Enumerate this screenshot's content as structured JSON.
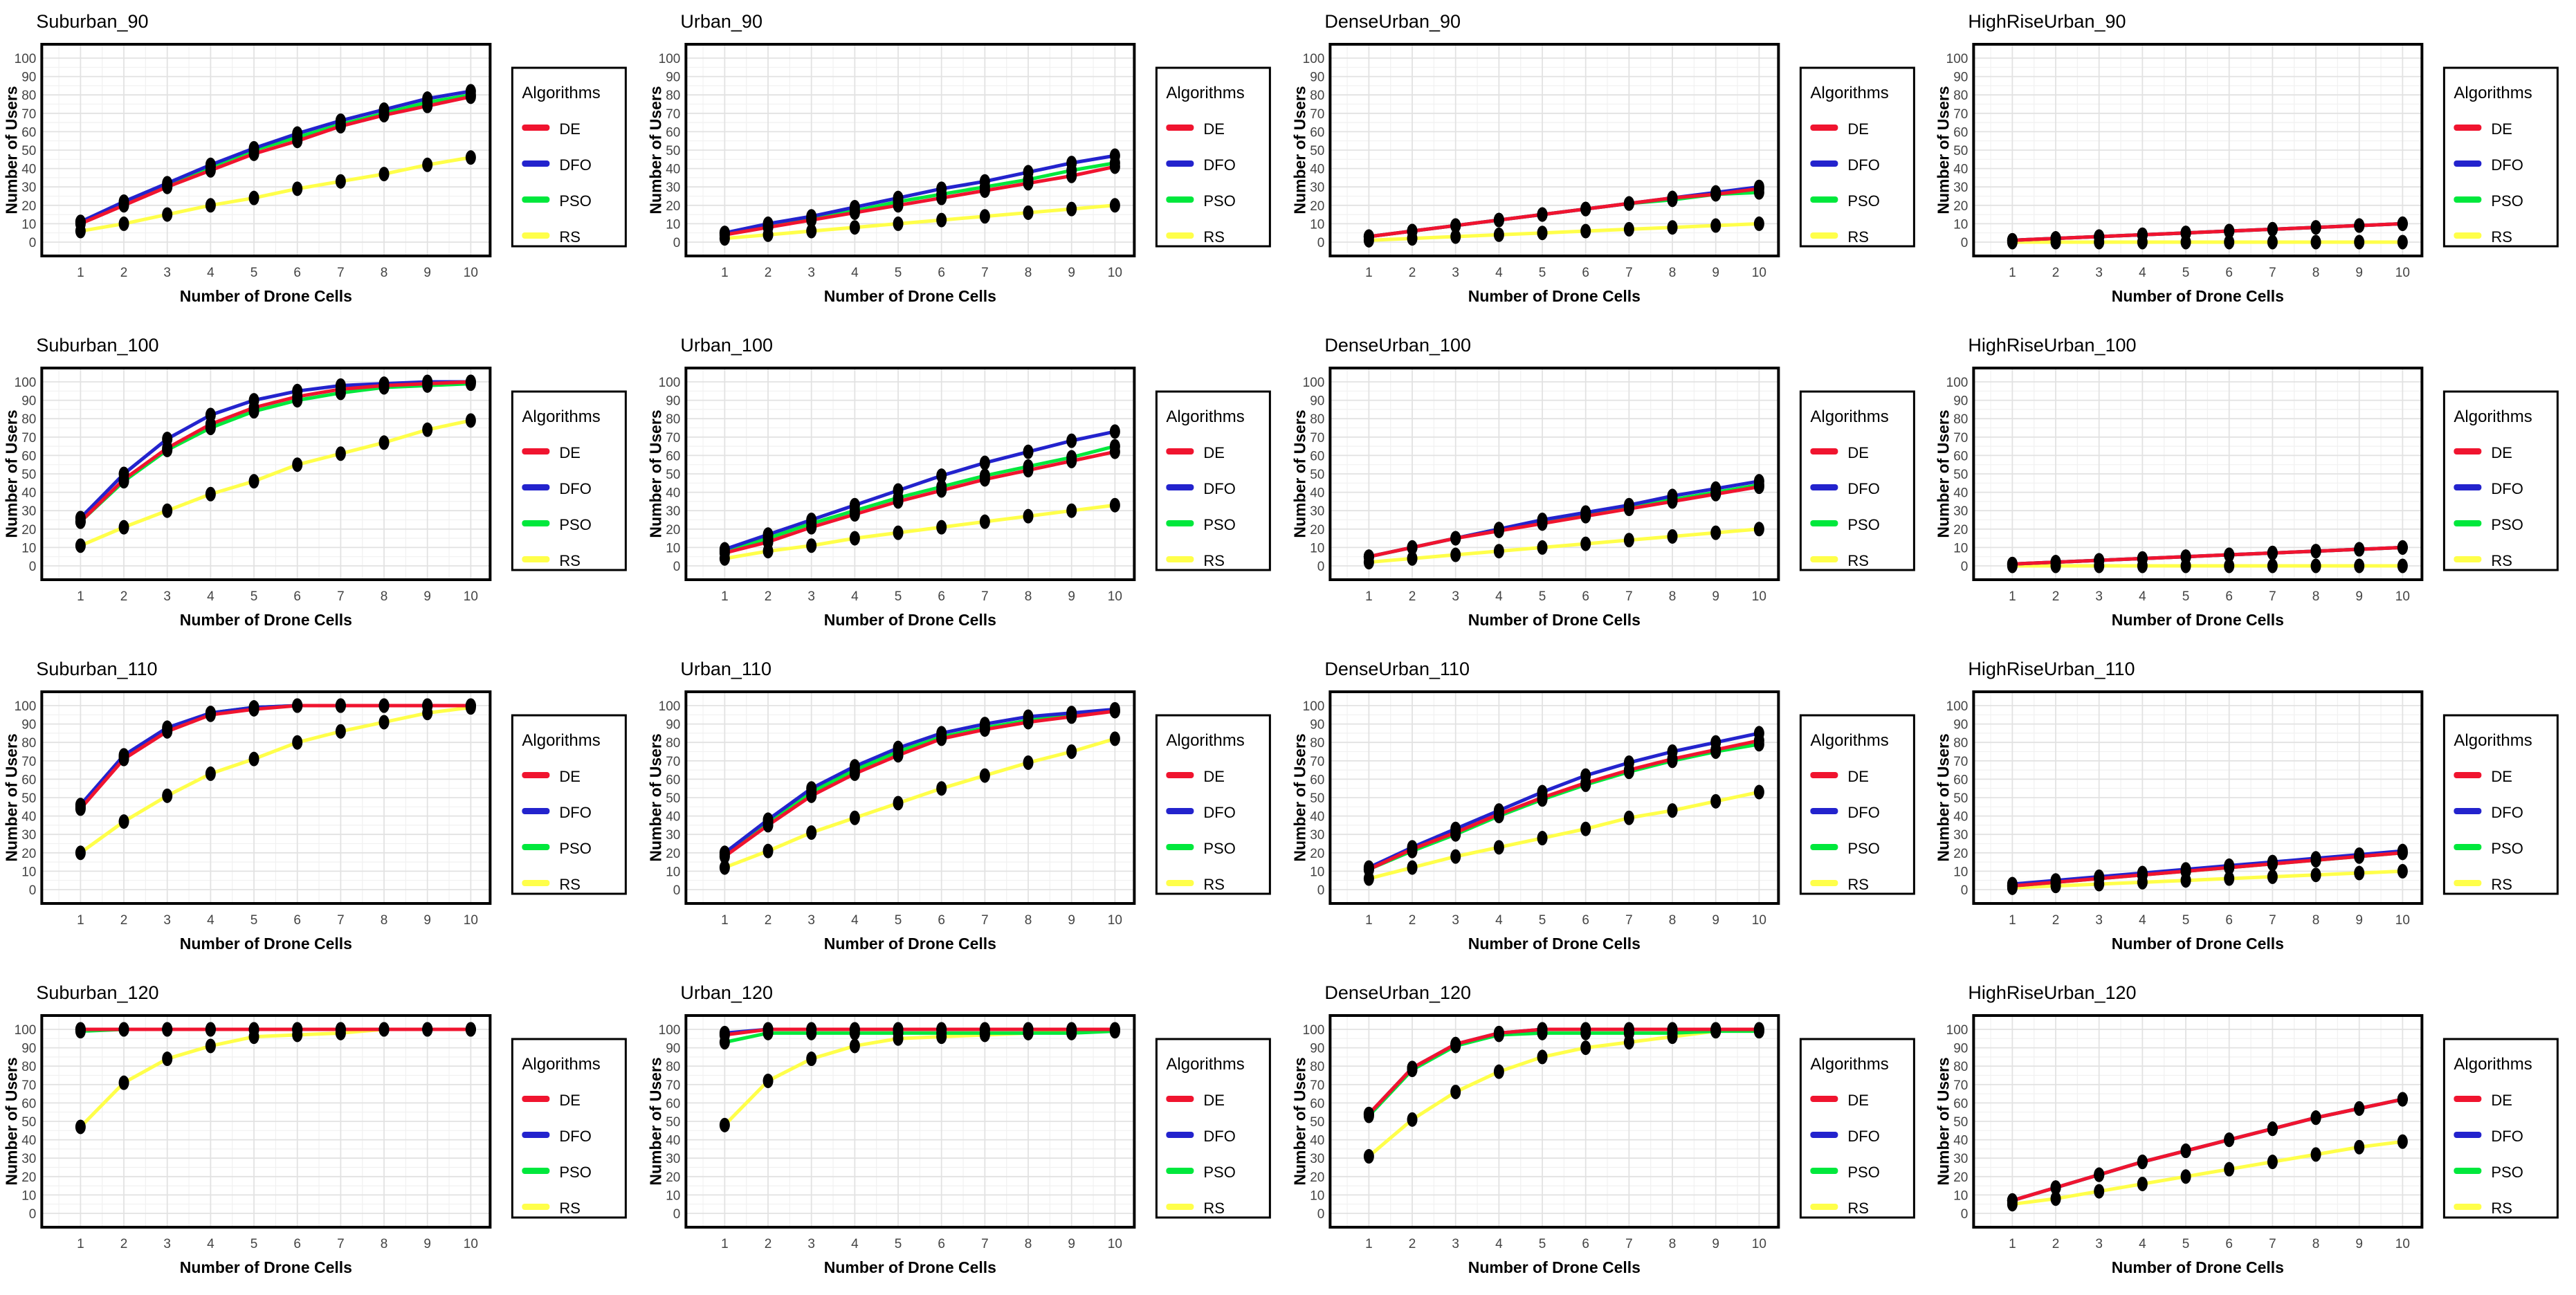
{
  "axes": {
    "xlabel": "Number of Drone Cells",
    "ylabel": "Number of Users",
    "x_ticks": [
      "1",
      "2",
      "3",
      "4",
      "5",
      "6",
      "7",
      "8",
      "9",
      "10"
    ],
    "y_ticks": [
      "0",
      "10",
      "20",
      "30",
      "40",
      "50",
      "60",
      "70",
      "80",
      "90",
      "100"
    ],
    "ylim": [
      0,
      100
    ],
    "grid": true
  },
  "legend": {
    "title": "Algorithms",
    "position": "right",
    "entries": [
      {
        "label": "DE",
        "color": "#f0142f"
      },
      {
        "label": "DFO",
        "color": "#2323cd"
      },
      {
        "label": "PSO",
        "color": "#00e83c"
      },
      {
        "label": "RS",
        "color": "#ffff4a"
      }
    ]
  },
  "style": {
    "marker_color": "#000000",
    "grid_major_color": "#e2e2e2",
    "grid_minor_color": "#f1f1f1",
    "panel_border_color": "#000000"
  },
  "chart_data": [
    {
      "type": "line",
      "title": "Suburban_90",
      "categories": [
        1,
        2,
        3,
        4,
        5,
        6,
        7,
        8,
        9,
        10
      ],
      "series": [
        {
          "name": "DE",
          "values": [
            10,
            20,
            30,
            39,
            48,
            55,
            63,
            69,
            74,
            79
          ]
        },
        {
          "name": "DFO",
          "values": [
            11,
            22,
            32,
            42,
            51,
            59,
            66,
            72,
            78,
            82
          ]
        },
        {
          "name": "PSO",
          "values": [
            11,
            21,
            31,
            41,
            50,
            57,
            64,
            70,
            76,
            80
          ]
        },
        {
          "name": "RS",
          "values": [
            6,
            10,
            15,
            20,
            24,
            29,
            33,
            37,
            42,
            46
          ]
        }
      ]
    },
    {
      "type": "line",
      "title": "Urban_90",
      "categories": [
        1,
        2,
        3,
        4,
        5,
        6,
        7,
        8,
        9,
        10
      ],
      "series": [
        {
          "name": "DE",
          "values": [
            4,
            8,
            12,
            16,
            20,
            24,
            28,
            32,
            36,
            41
          ]
        },
        {
          "name": "DFO",
          "values": [
            5,
            10,
            14,
            19,
            24,
            29,
            33,
            38,
            43,
            47
          ]
        },
        {
          "name": "PSO",
          "values": [
            5,
            9,
            13,
            17,
            22,
            26,
            30,
            34,
            39,
            43
          ]
        },
        {
          "name": "RS",
          "values": [
            2,
            4,
            6,
            8,
            10,
            12,
            14,
            16,
            18,
            20
          ]
        }
      ]
    },
    {
      "type": "line",
      "title": "DenseUrban_90",
      "categories": [
        1,
        2,
        3,
        4,
        5,
        6,
        7,
        8,
        9,
        10
      ],
      "series": [
        {
          "name": "DE",
          "values": [
            3,
            6,
            9,
            12,
            15,
            18,
            21,
            24,
            26,
            29
          ]
        },
        {
          "name": "DFO",
          "values": [
            3,
            6,
            9,
            12,
            15,
            18,
            21,
            24,
            27,
            30
          ]
        },
        {
          "name": "PSO",
          "values": [
            3,
            6,
            9,
            12,
            15,
            18,
            21,
            23,
            26,
            27
          ]
        },
        {
          "name": "RS",
          "values": [
            1,
            2,
            3,
            4,
            5,
            6,
            7,
            8,
            9,
            10
          ]
        }
      ]
    },
    {
      "type": "line",
      "title": "HighRiseUrban_90",
      "categories": [
        1,
        2,
        3,
        4,
        5,
        6,
        7,
        8,
        9,
        10
      ],
      "series": [
        {
          "name": "DE",
          "values": [
            1,
            2,
            3,
            4,
            5,
            6,
            7,
            8,
            9,
            10
          ]
        },
        {
          "name": "DFO",
          "values": [
            1,
            2,
            3,
            4,
            5,
            6,
            7,
            8,
            9,
            10
          ]
        },
        {
          "name": "PSO",
          "values": [
            1,
            2,
            3,
            4,
            5,
            6,
            7,
            8,
            9,
            10
          ]
        },
        {
          "name": "RS",
          "values": [
            0,
            0,
            0,
            0,
            0,
            0,
            0,
            0,
            0,
            0
          ]
        }
      ]
    },
    {
      "type": "line",
      "title": "Suburban_100",
      "categories": [
        1,
        2,
        3,
        4,
        5,
        6,
        7,
        8,
        9,
        10
      ],
      "series": [
        {
          "name": "DE",
          "values": [
            24,
            47,
            64,
            77,
            86,
            92,
            96,
            98,
            99,
            100
          ]
        },
        {
          "name": "DFO",
          "values": [
            26,
            50,
            69,
            82,
            90,
            95,
            98,
            99,
            100,
            100
          ]
        },
        {
          "name": "PSO",
          "values": [
            24,
            46,
            63,
            75,
            84,
            90,
            94,
            97,
            98,
            99
          ]
        },
        {
          "name": "RS",
          "values": [
            11,
            21,
            30,
            39,
            46,
            55,
            61,
            67,
            74,
            79
          ]
        }
      ]
    },
    {
      "type": "line",
      "title": "Urban_100",
      "categories": [
        1,
        2,
        3,
        4,
        5,
        6,
        7,
        8,
        9,
        10
      ],
      "series": [
        {
          "name": "DE",
          "values": [
            7,
            13,
            21,
            28,
            35,
            41,
            47,
            52,
            57,
            62
          ]
        },
        {
          "name": "DFO",
          "values": [
            9,
            17,
            25,
            33,
            41,
            49,
            56,
            62,
            68,
            73
          ]
        },
        {
          "name": "PSO",
          "values": [
            8,
            15,
            23,
            30,
            37,
            43,
            49,
            54,
            59,
            65
          ]
        },
        {
          "name": "RS",
          "values": [
            4,
            8,
            11,
            15,
            18,
            21,
            24,
            27,
            30,
            33
          ]
        }
      ]
    },
    {
      "type": "line",
      "title": "DenseUrban_100",
      "categories": [
        1,
        2,
        3,
        4,
        5,
        6,
        7,
        8,
        9,
        10
      ],
      "series": [
        {
          "name": "DE",
          "values": [
            5,
            10,
            15,
            19,
            23,
            27,
            31,
            35,
            39,
            43
          ]
        },
        {
          "name": "DFO",
          "values": [
            5,
            10,
            15,
            20,
            25,
            29,
            33,
            38,
            42,
            46
          ]
        },
        {
          "name": "PSO",
          "values": [
            5,
            10,
            15,
            20,
            24,
            28,
            32,
            36,
            40,
            44
          ]
        },
        {
          "name": "RS",
          "values": [
            2,
            4,
            6,
            8,
            10,
            12,
            14,
            16,
            18,
            20
          ]
        }
      ]
    },
    {
      "type": "line",
      "title": "HighRiseUrban_100",
      "categories": [
        1,
        2,
        3,
        4,
        5,
        6,
        7,
        8,
        9,
        10
      ],
      "series": [
        {
          "name": "DE",
          "values": [
            1,
            2,
            3,
            4,
            5,
            6,
            7,
            8,
            9,
            10
          ]
        },
        {
          "name": "DFO",
          "values": [
            1,
            2,
            3,
            4,
            5,
            6,
            7,
            8,
            9,
            10
          ]
        },
        {
          "name": "PSO",
          "values": [
            1,
            2,
            3,
            4,
            5,
            6,
            7,
            8,
            9,
            10
          ]
        },
        {
          "name": "RS",
          "values": [
            0,
            0,
            0,
            0,
            0,
            0,
            0,
            0,
            0,
            0
          ]
        }
      ]
    },
    {
      "type": "line",
      "title": "Suburban_110",
      "categories": [
        1,
        2,
        3,
        4,
        5,
        6,
        7,
        8,
        9,
        10
      ],
      "series": [
        {
          "name": "DE",
          "values": [
            44,
            71,
            86,
            95,
            98,
            100,
            100,
            100,
            100,
            100
          ]
        },
        {
          "name": "DFO",
          "values": [
            46,
            73,
            88,
            96,
            99,
            100,
            100,
            100,
            100,
            100
          ]
        },
        {
          "name": "PSO",
          "values": [
            45,
            72,
            87,
            96,
            99,
            100,
            100,
            100,
            100,
            100
          ]
        },
        {
          "name": "RS",
          "values": [
            20,
            37,
            51,
            63,
            71,
            80,
            86,
            91,
            96,
            99
          ]
        }
      ]
    },
    {
      "type": "line",
      "title": "Urban_110",
      "categories": [
        1,
        2,
        3,
        4,
        5,
        6,
        7,
        8,
        9,
        10
      ],
      "series": [
        {
          "name": "DE",
          "values": [
            18,
            35,
            51,
            63,
            73,
            82,
            87,
            91,
            94,
            97
          ]
        },
        {
          "name": "DFO",
          "values": [
            20,
            38,
            55,
            67,
            77,
            85,
            90,
            94,
            96,
            98
          ]
        },
        {
          "name": "PSO",
          "values": [
            19,
            37,
            53,
            65,
            75,
            83,
            88,
            92,
            95,
            97
          ]
        },
        {
          "name": "RS",
          "values": [
            12,
            21,
            31,
            39,
            47,
            55,
            62,
            69,
            75,
            82
          ]
        }
      ]
    },
    {
      "type": "line",
      "title": "DenseUrban_110",
      "categories": [
        1,
        2,
        3,
        4,
        5,
        6,
        7,
        8,
        9,
        10
      ],
      "series": [
        {
          "name": "DE",
          "values": [
            11,
            22,
            31,
            41,
            50,
            58,
            65,
            71,
            76,
            81
          ]
        },
        {
          "name": "DFO",
          "values": [
            12,
            23,
            33,
            43,
            53,
            62,
            69,
            75,
            80,
            85
          ]
        },
        {
          "name": "PSO",
          "values": [
            11,
            21,
            30,
            40,
            49,
            57,
            64,
            70,
            75,
            79
          ]
        },
        {
          "name": "RS",
          "values": [
            6,
            12,
            18,
            23,
            28,
            33,
            39,
            43,
            48,
            53
          ]
        }
      ]
    },
    {
      "type": "line",
      "title": "HighRiseUrban_110",
      "categories": [
        1,
        2,
        3,
        4,
        5,
        6,
        7,
        8,
        9,
        10
      ],
      "series": [
        {
          "name": "DE",
          "values": [
            2,
            4,
            6,
            8,
            10,
            12,
            14,
            16,
            18,
            20
          ]
        },
        {
          "name": "DFO",
          "values": [
            3,
            5,
            7,
            9,
            11,
            13,
            15,
            17,
            19,
            21
          ]
        },
        {
          "name": "PSO",
          "values": [
            2,
            4,
            6,
            8,
            10,
            12,
            14,
            16,
            18,
            20
          ]
        },
        {
          "name": "RS",
          "values": [
            1,
            2,
            3,
            4,
            5,
            6,
            7,
            8,
            9,
            10
          ]
        }
      ]
    },
    {
      "type": "line",
      "title": "Suburban_120",
      "categories": [
        1,
        2,
        3,
        4,
        5,
        6,
        7,
        8,
        9,
        10
      ],
      "series": [
        {
          "name": "DE",
          "values": [
            100,
            100,
            100,
            100,
            100,
            100,
            100,
            100,
            100,
            100
          ]
        },
        {
          "name": "DFO",
          "values": [
            100,
            100,
            100,
            100,
            100,
            100,
            100,
            100,
            100,
            100
          ]
        },
        {
          "name": "PSO",
          "values": [
            99,
            100,
            100,
            100,
            100,
            100,
            100,
            100,
            100,
            100
          ]
        },
        {
          "name": "RS",
          "values": [
            47,
            71,
            84,
            91,
            96,
            97,
            98,
            100,
            100,
            100
          ]
        }
      ]
    },
    {
      "type": "line",
      "title": "Urban_120",
      "categories": [
        1,
        2,
        3,
        4,
        5,
        6,
        7,
        8,
        9,
        10
      ],
      "series": [
        {
          "name": "DE",
          "values": [
            97,
            100,
            100,
            100,
            100,
            100,
            100,
            100,
            100,
            100
          ]
        },
        {
          "name": "DFO",
          "values": [
            98,
            100,
            100,
            100,
            100,
            100,
            100,
            100,
            100,
            100
          ]
        },
        {
          "name": "PSO",
          "values": [
            93,
            98,
            98,
            98,
            98,
            98,
            98,
            98,
            98,
            99
          ]
        },
        {
          "name": "RS",
          "values": [
            48,
            72,
            84,
            91,
            95,
            96,
            97,
            98,
            99,
            99
          ]
        }
      ]
    },
    {
      "type": "line",
      "title": "DenseUrban_120",
      "categories": [
        1,
        2,
        3,
        4,
        5,
        6,
        7,
        8,
        9,
        10
      ],
      "series": [
        {
          "name": "DE",
          "values": [
            54,
            79,
            92,
            98,
            100,
            100,
            100,
            100,
            100,
            100
          ]
        },
        {
          "name": "DFO",
          "values": [
            54,
            79,
            92,
            98,
            100,
            100,
            100,
            100,
            100,
            100
          ]
        },
        {
          "name": "PSO",
          "values": [
            53,
            78,
            91,
            97,
            98,
            98,
            98,
            98,
            99,
            99
          ]
        },
        {
          "name": "RS",
          "values": [
            31,
            51,
            66,
            77,
            85,
            90,
            93,
            96,
            99,
            99
          ]
        }
      ]
    },
    {
      "type": "line",
      "title": "HighRiseUrban_120",
      "categories": [
        1,
        2,
        3,
        4,
        5,
        6,
        7,
        8,
        9,
        10
      ],
      "series": [
        {
          "name": "DE",
          "values": [
            7,
            14,
            21,
            28,
            34,
            40,
            46,
            52,
            57,
            62
          ]
        },
        {
          "name": "DFO",
          "values": [
            7,
            14,
            21,
            28,
            34,
            40,
            46,
            52,
            57,
            62
          ]
        },
        {
          "name": "PSO",
          "values": [
            7,
            14,
            21,
            28,
            34,
            40,
            46,
            52,
            57,
            62
          ]
        },
        {
          "name": "RS",
          "values": [
            5,
            8,
            12,
            16,
            20,
            24,
            28,
            32,
            36,
            39
          ]
        }
      ]
    }
  ]
}
